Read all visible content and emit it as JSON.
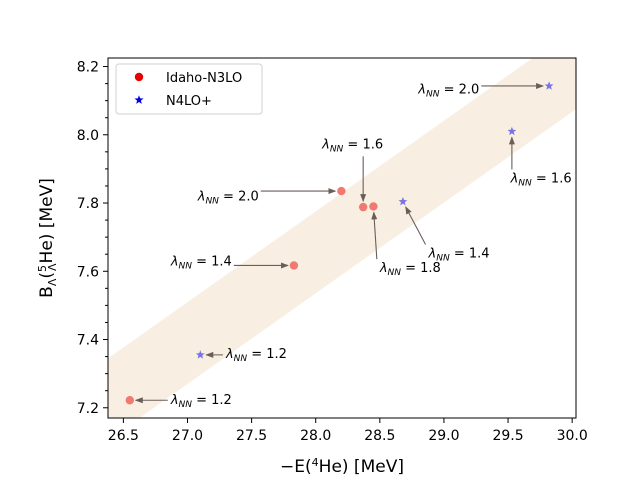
{
  "chart_data": {
    "type": "scatter",
    "xlabel": "−E(⁴He) [MeV]",
    "ylabel": "BΛ(⁵ΛHe) [MeV]",
    "xlim": [
      26.38,
      30.03
    ],
    "ylim": [
      7.17,
      8.225
    ],
    "xticks": [
      26.5,
      27.0,
      27.5,
      28.0,
      28.5,
      29.0,
      29.5,
      30.0
    ],
    "xtick_labels": [
      "26.5",
      "27.0",
      "27.5",
      "28.0",
      "28.5",
      "29.0",
      "29.5",
      "30.0"
    ],
    "yticks": [
      7.2,
      7.4,
      7.6,
      7.8,
      8.0,
      8.2
    ],
    "ytick_labels": [
      "7.2",
      "7.4",
      "7.6",
      "7.8",
      "8.0",
      "8.2"
    ],
    "band": {
      "color": "#f8efe2",
      "lower": [
        [
          26.38,
          7.105
        ],
        [
          30.03,
          8.075
        ]
      ],
      "upper": [
        [
          26.38,
          7.345
        ],
        [
          30.03,
          8.315
        ]
      ]
    },
    "series": [
      {
        "name": "Idaho-N3LO",
        "marker": "circle",
        "color": "#f07a72",
        "legend_color": "#e60000",
        "points": [
          {
            "x": 26.55,
            "y": 7.222,
            "label": "λNN = 1.2",
            "text_x": 26.87,
            "text_y": 7.225
          },
          {
            "x": 27.83,
            "y": 7.617,
            "label": "λNN = 1.4",
            "text_x": 26.87,
            "text_y": 7.632
          },
          {
            "x": 28.37,
            "y": 7.788,
            "label": "λNN = 1.6",
            "text_x": 28.05,
            "text_y": 7.975
          },
          {
            "x": 28.45,
            "y": 7.79,
            "label": "λNN = 1.8",
            "text_x": 28.5,
            "text_y": 7.612
          },
          {
            "x": 28.2,
            "y": 7.835,
            "label": "λNN = 2.0",
            "text_x": 27.08,
            "text_y": 7.822
          }
        ]
      },
      {
        "name": "N4LO+",
        "marker": "star",
        "color": "#7b74e6",
        "legend_color": "#0000e6",
        "points": [
          {
            "x": 27.1,
            "y": 7.355,
            "label": "λNN = 1.2",
            "text_x": 27.3,
            "text_y": 7.36
          },
          {
            "x": 28.68,
            "y": 7.804,
            "label": "λNN = 1.4",
            "text_x": 28.88,
            "text_y": 7.655
          },
          {
            "x": 29.53,
            "y": 8.01,
            "label": "λNN = 1.6",
            "text_x": 29.52,
            "text_y": 7.875
          },
          {
            "x": 29.82,
            "y": 8.143,
            "label": "λNN = 2.0",
            "text_x": 28.8,
            "text_y": 8.135
          }
        ]
      }
    ],
    "legend_position": "top-left"
  }
}
